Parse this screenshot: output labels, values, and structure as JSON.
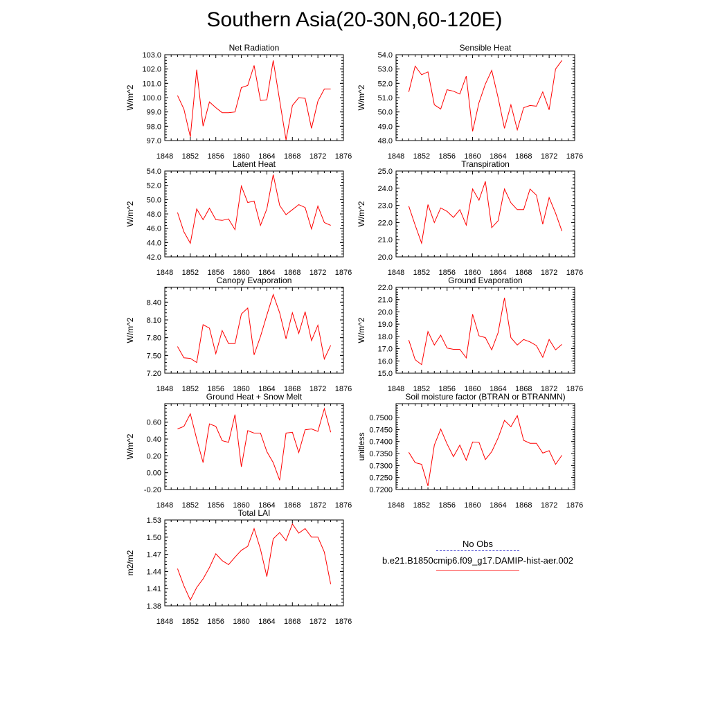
{
  "title": "Southern Asia(20-30N,60-120E)",
  "legend": {
    "obs_label": "No Obs",
    "model_label": "b.e21.B1850cmip6.f09_g17.DAMIP-hist-aer.002",
    "obs_color": "#3333cc",
    "model_color": "#ff0000"
  },
  "chart_data": [
    {
      "type": "line",
      "title": "Net Radiation",
      "ylabel": "W/m^2",
      "xlim": [
        1848,
        1876
      ],
      "xticks": [
        1848,
        1852,
        1856,
        1860,
        1864,
        1868,
        1872,
        1876
      ],
      "ylim": [
        97.0,
        103.0
      ],
      "yticks": [
        "97.0",
        "98.0",
        "99.0",
        "100.0",
        "101.0",
        "102.0",
        "103.0"
      ],
      "x": [
        1850,
        1851,
        1852,
        1853,
        1854,
        1855,
        1856,
        1857,
        1858,
        1859,
        1860,
        1861,
        1862,
        1863,
        1864,
        1865,
        1866,
        1867,
        1868,
        1869,
        1870,
        1871,
        1872,
        1873,
        1874
      ],
      "series": [
        {
          "values": [
            100.15,
            99.2,
            97.25,
            101.95,
            98.0,
            99.7,
            99.3,
            98.95,
            98.95,
            99.0,
            100.7,
            100.85,
            102.25,
            99.8,
            99.85,
            102.6,
            99.8,
            97.05,
            99.45,
            100.0,
            99.95,
            97.85,
            99.75,
            100.6,
            100.6
          ],
          "color": "#ff0000"
        }
      ]
    },
    {
      "type": "line",
      "title": "Sensible Heat",
      "ylabel": "W/m^2",
      "xlim": [
        1848,
        1876
      ],
      "xticks": [
        1848,
        1852,
        1856,
        1860,
        1864,
        1868,
        1872,
        1876
      ],
      "ylim": [
        48.0,
        54.0
      ],
      "yticks": [
        "48.0",
        "49.0",
        "50.0",
        "51.0",
        "52.0",
        "53.0",
        "54.0"
      ],
      "x": [
        1850,
        1851,
        1852,
        1853,
        1854,
        1855,
        1856,
        1857,
        1858,
        1859,
        1860,
        1861,
        1862,
        1863,
        1864,
        1865,
        1866,
        1867,
        1868,
        1869,
        1870,
        1871,
        1872,
        1873,
        1874
      ],
      "series": [
        {
          "values": [
            51.4,
            53.2,
            52.6,
            52.8,
            50.5,
            50.2,
            51.55,
            51.45,
            51.25,
            52.5,
            48.65,
            50.65,
            51.95,
            52.9,
            51.0,
            48.85,
            50.5,
            48.75,
            50.3,
            50.45,
            50.4,
            51.4,
            50.15,
            53.0,
            53.6
          ],
          "color": "#ff0000"
        }
      ]
    },
    {
      "type": "line",
      "title": "Latent Heat",
      "ylabel": "W/m^2",
      "xlim": [
        1848,
        1876
      ],
      "xticks": [
        1848,
        1852,
        1856,
        1860,
        1864,
        1868,
        1872,
        1876
      ],
      "ylim": [
        42.0,
        54.0
      ],
      "yticks": [
        "42.0",
        "44.0",
        "46.0",
        "48.0",
        "50.0",
        "52.0",
        "54.0"
      ],
      "x": [
        1850,
        1851,
        1852,
        1853,
        1854,
        1855,
        1856,
        1857,
        1858,
        1859,
        1860,
        1861,
        1862,
        1863,
        1864,
        1865,
        1866,
        1867,
        1868,
        1869,
        1870,
        1871,
        1872,
        1873,
        1874
      ],
      "series": [
        {
          "values": [
            48.2,
            45.5,
            43.9,
            48.7,
            47.2,
            48.8,
            47.2,
            47.1,
            47.3,
            45.8,
            51.9,
            49.6,
            49.8,
            46.4,
            48.7,
            53.5,
            49.2,
            47.9,
            48.6,
            49.3,
            48.9,
            45.9,
            49.1,
            46.8,
            46.4
          ],
          "color": "#ff0000"
        }
      ]
    },
    {
      "type": "line",
      "title": "Transpiration",
      "ylabel": "W/m^2",
      "xlim": [
        1848,
        1876
      ],
      "xticks": [
        1848,
        1852,
        1856,
        1860,
        1864,
        1868,
        1872,
        1876
      ],
      "ylim": [
        20.0,
        25.0
      ],
      "yticks": [
        "20.0",
        "21.0",
        "22.0",
        "23.0",
        "24.0",
        "25.0"
      ],
      "x": [
        1850,
        1851,
        1852,
        1853,
        1854,
        1855,
        1856,
        1857,
        1858,
        1859,
        1860,
        1861,
        1862,
        1863,
        1864,
        1865,
        1866,
        1867,
        1868,
        1869,
        1870,
        1871,
        1872,
        1873,
        1874
      ],
      "series": [
        {
          "values": [
            22.95,
            21.85,
            20.8,
            23.05,
            22.0,
            22.85,
            22.65,
            22.3,
            22.75,
            21.85,
            23.95,
            23.3,
            24.4,
            21.7,
            22.1,
            23.95,
            23.15,
            22.75,
            22.75,
            23.95,
            23.6,
            21.9,
            23.45,
            22.55,
            21.5
          ],
          "color": "#ff0000"
        }
      ]
    },
    {
      "type": "line",
      "title": "Canopy Evaporation",
      "ylabel": "W/m^2",
      "xlim": [
        1848,
        1876
      ],
      "xticks": [
        1848,
        1852,
        1856,
        1860,
        1864,
        1868,
        1872,
        1876
      ],
      "ylim": [
        7.2,
        8.65
      ],
      "yticks": [
        "7.20",
        "7.50",
        "7.80",
        "8.10",
        "8.40"
      ],
      "x": [
        1850,
        1851,
        1852,
        1853,
        1854,
        1855,
        1856,
        1857,
        1858,
        1859,
        1860,
        1861,
        1862,
        1863,
        1864,
        1865,
        1866,
        1867,
        1868,
        1869,
        1870,
        1871,
        1872,
        1873,
        1874
      ],
      "series": [
        {
          "values": [
            7.65,
            7.46,
            7.45,
            7.38,
            8.02,
            7.96,
            7.53,
            7.92,
            7.7,
            7.7,
            8.2,
            8.3,
            7.51,
            7.82,
            8.18,
            8.53,
            8.22,
            7.78,
            8.22,
            7.87,
            8.24,
            7.75,
            8.01,
            7.44,
            7.67
          ],
          "color": "#ff0000"
        }
      ]
    },
    {
      "type": "line",
      "title": "Ground Evaporation",
      "ylabel": "W/m^2",
      "xlim": [
        1848,
        1876
      ],
      "xticks": [
        1848,
        1852,
        1856,
        1860,
        1864,
        1868,
        1872,
        1876
      ],
      "ylim": [
        15.0,
        22.0
      ],
      "yticks": [
        "15.0",
        "16.0",
        "17.0",
        "18.0",
        "19.0",
        "20.0",
        "21.0",
        "22.0"
      ],
      "x": [
        1850,
        1851,
        1852,
        1853,
        1854,
        1855,
        1856,
        1857,
        1858,
        1859,
        1860,
        1861,
        1862,
        1863,
        1864,
        1865,
        1866,
        1867,
        1868,
        1869,
        1870,
        1871,
        1872,
        1873,
        1874
      ],
      "series": [
        {
          "values": [
            17.7,
            16.1,
            15.7,
            18.4,
            17.3,
            18.1,
            17.05,
            16.95,
            16.95,
            16.25,
            19.8,
            18.05,
            17.9,
            16.9,
            18.3,
            21.15,
            17.9,
            17.3,
            17.75,
            17.55,
            17.25,
            16.3,
            17.75,
            16.9,
            17.35
          ],
          "color": "#ff0000"
        }
      ]
    },
    {
      "type": "line",
      "title": "Ground Heat + Snow Melt",
      "ylabel": "W/m^2",
      "xlim": [
        1848,
        1876
      ],
      "xticks": [
        1848,
        1852,
        1856,
        1860,
        1864,
        1868,
        1872,
        1876
      ],
      "ylim": [
        -0.2,
        0.82
      ],
      "yticks": [
        "-0.20",
        "0.00",
        "0.20",
        "0.40",
        "0.60"
      ],
      "x": [
        1850,
        1851,
        1852,
        1853,
        1854,
        1855,
        1856,
        1857,
        1858,
        1859,
        1860,
        1861,
        1862,
        1863,
        1864,
        1865,
        1866,
        1867,
        1868,
        1869,
        1870,
        1871,
        1872,
        1873,
        1874
      ],
      "series": [
        {
          "values": [
            0.52,
            0.55,
            0.7,
            0.4,
            0.12,
            0.58,
            0.55,
            0.38,
            0.36,
            0.69,
            0.07,
            0.5,
            0.47,
            0.47,
            0.25,
            0.12,
            -0.09,
            0.47,
            0.48,
            0.24,
            0.51,
            0.52,
            0.49,
            0.76,
            0.48
          ],
          "color": "#ff0000"
        }
      ]
    },
    {
      "type": "line",
      "title": "Soil moisture factor (BTRAN or BTRANMN)",
      "ylabel": "unitless",
      "xlim": [
        1848,
        1876
      ],
      "xticks": [
        1848,
        1852,
        1856,
        1860,
        1864,
        1868,
        1872,
        1876
      ],
      "ylim": [
        0.72,
        0.7558
      ],
      "yticks": [
        "0.7200",
        "0.7250",
        "0.7300",
        "0.7350",
        "0.7400",
        "0.7450",
        "0.7500"
      ],
      "x": [
        1850,
        1851,
        1852,
        1853,
        1854,
        1855,
        1856,
        1857,
        1858,
        1859,
        1860,
        1861,
        1862,
        1863,
        1864,
        1865,
        1866,
        1867,
        1868,
        1869,
        1870,
        1871,
        1872,
        1873,
        1874
      ],
      "series": [
        {
          "values": [
            0.7355,
            0.7312,
            0.7305,
            0.7215,
            0.7385,
            0.7452,
            0.739,
            0.7337,
            0.7385,
            0.7322,
            0.7398,
            0.7397,
            0.7325,
            0.7358,
            0.7415,
            0.7488,
            0.7462,
            0.7508,
            0.7405,
            0.7393,
            0.7393,
            0.7352,
            0.7362,
            0.7305,
            0.7343
          ],
          "color": "#ff0000"
        }
      ]
    },
    {
      "type": "line",
      "title": "Total LAI",
      "ylabel": "m2/m2",
      "xlim": [
        1848,
        1876
      ],
      "xticks": [
        1848,
        1852,
        1856,
        1860,
        1864,
        1868,
        1872,
        1876
      ],
      "ylim": [
        1.38,
        1.53
      ],
      "yticks": [
        "1.38",
        "1.41",
        "1.44",
        "1.47",
        "1.50",
        "1.53"
      ],
      "x": [
        1850,
        1851,
        1852,
        1853,
        1854,
        1855,
        1856,
        1857,
        1858,
        1859,
        1860,
        1861,
        1862,
        1863,
        1864,
        1865,
        1866,
        1867,
        1868,
        1869,
        1870,
        1871,
        1872,
        1873,
        1874
      ],
      "series": [
        {
          "values": [
            1.445,
            1.415,
            1.39,
            1.412,
            1.427,
            1.447,
            1.471,
            1.459,
            1.452,
            1.465,
            1.477,
            1.484,
            1.515,
            1.479,
            1.431,
            1.497,
            1.508,
            1.494,
            1.523,
            1.507,
            1.515,
            1.5,
            1.5,
            1.474,
            1.418
          ],
          "color": "#ff0000"
        }
      ]
    }
  ]
}
